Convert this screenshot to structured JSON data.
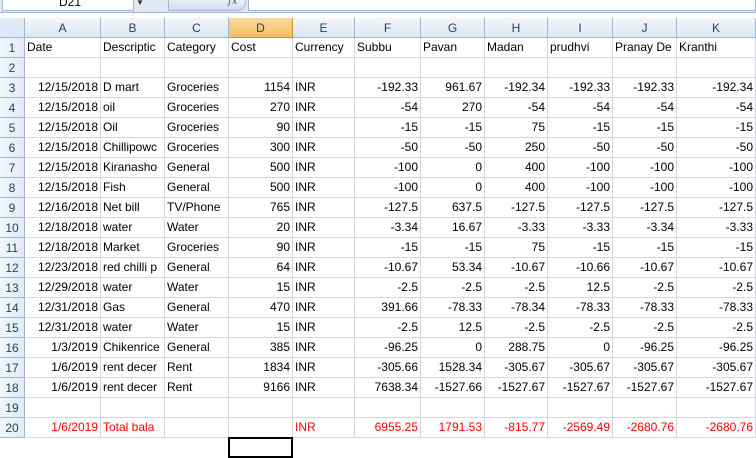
{
  "formula_bar": {
    "name_box": "D21",
    "fx": "fx",
    "value": ""
  },
  "columns": [
    "A",
    "B",
    "C",
    "D",
    "E",
    "F",
    "G",
    "H",
    "I",
    "J",
    "K"
  ],
  "active_column": "D",
  "rows": [
    [
      "Date",
      "Descriptic",
      "Category",
      "Cost",
      "Currency",
      "Subbu",
      "Pavan",
      "Madan",
      "prudhvi",
      "Pranay De",
      "Kranthi"
    ],
    [
      "",
      "",
      "",
      "",
      "",
      "",
      "",
      "",
      "",
      "",
      ""
    ],
    [
      "12/15/2018",
      "D mart",
      "Groceries",
      "1154",
      "INR",
      "-192.33",
      "961.67",
      "-192.34",
      "-192.33",
      "-192.33",
      "-192.34"
    ],
    [
      "12/15/2018",
      "oil",
      "Groceries",
      "270",
      "INR",
      "-54",
      "270",
      "-54",
      "-54",
      "-54",
      "-54"
    ],
    [
      "12/15/2018",
      "Oil",
      "Groceries",
      "90",
      "INR",
      "-15",
      "-15",
      "75",
      "-15",
      "-15",
      "-15"
    ],
    [
      "12/15/2018",
      "Chillipowc",
      "Groceries",
      "300",
      "INR",
      "-50",
      "-50",
      "250",
      "-50",
      "-50",
      "-50"
    ],
    [
      "12/15/2018",
      "Kiranasho",
      "General",
      "500",
      "INR",
      "-100",
      "0",
      "400",
      "-100",
      "-100",
      "-100"
    ],
    [
      "12/15/2018",
      "Fish",
      "General",
      "500",
      "INR",
      "-100",
      "0",
      "400",
      "-100",
      "-100",
      "-100"
    ],
    [
      "12/16/2018",
      "Net bill",
      "TV/Phone",
      "765",
      "INR",
      "-127.5",
      "637.5",
      "-127.5",
      "-127.5",
      "-127.5",
      "-127.5"
    ],
    [
      "12/18/2018",
      "water",
      "Water",
      "20",
      "INR",
      "-3.34",
      "16.67",
      "-3.33",
      "-3.33",
      "-3.34",
      "-3.33"
    ],
    [
      "12/18/2018",
      "Market",
      "Groceries",
      "90",
      "INR",
      "-15",
      "-15",
      "75",
      "-15",
      "-15",
      "-15"
    ],
    [
      "12/23/2018",
      "red chilli p",
      "General",
      "64",
      "INR",
      "-10.67",
      "53.34",
      "-10.67",
      "-10.66",
      "-10.67",
      "-10.67"
    ],
    [
      "12/29/2018",
      "water",
      "Water",
      "15",
      "INR",
      "-2.5",
      "-2.5",
      "-2.5",
      "12.5",
      "-2.5",
      "-2.5"
    ],
    [
      "12/31/2018",
      "Gas",
      "General",
      "470",
      "INR",
      "391.66",
      "-78.33",
      "-78.34",
      "-78.33",
      "-78.33",
      "-78.33"
    ],
    [
      "12/31/2018",
      "water",
      "Water",
      "15",
      "INR",
      "-2.5",
      "12.5",
      "-2.5",
      "-2.5",
      "-2.5",
      "-2.5"
    ],
    [
      "1/3/2019",
      "Chikenrice",
      "General",
      "385",
      "INR",
      "-96.25",
      "0",
      "288.75",
      "0",
      "-96.25",
      "-96.25"
    ],
    [
      "1/6/2019",
      "rent decer",
      "Rent",
      "1834",
      "INR",
      "-305.66",
      "1528.34",
      "-305.67",
      "-305.67",
      "-305.67",
      "-305.67"
    ],
    [
      "1/6/2019",
      "rent decer",
      "Rent",
      "9166",
      "INR",
      "7638.34",
      "-1527.66",
      "-1527.67",
      "-1527.67",
      "-1527.67",
      "-1527.67"
    ],
    [
      "",
      "",
      "",
      "",
      "",
      "",
      "",
      "",
      "",
      "",
      ""
    ],
    [
      "1/6/2019",
      "Total bala",
      "",
      "",
      "INR",
      "6955.25",
      "1791.53",
      "-815.77",
      "-2569.49",
      "-2680.76",
      "-2680.76"
    ]
  ],
  "row_numbers": [
    "1",
    "2",
    "3",
    "4",
    "5",
    "6",
    "7",
    "8",
    "9",
    "10",
    "11",
    "12",
    "13",
    "14",
    "15",
    "16",
    "17",
    "18",
    "19",
    "20"
  ],
  "colors": {
    "total_row_text": "#ff0000",
    "active_header": "#f1c15f"
  }
}
